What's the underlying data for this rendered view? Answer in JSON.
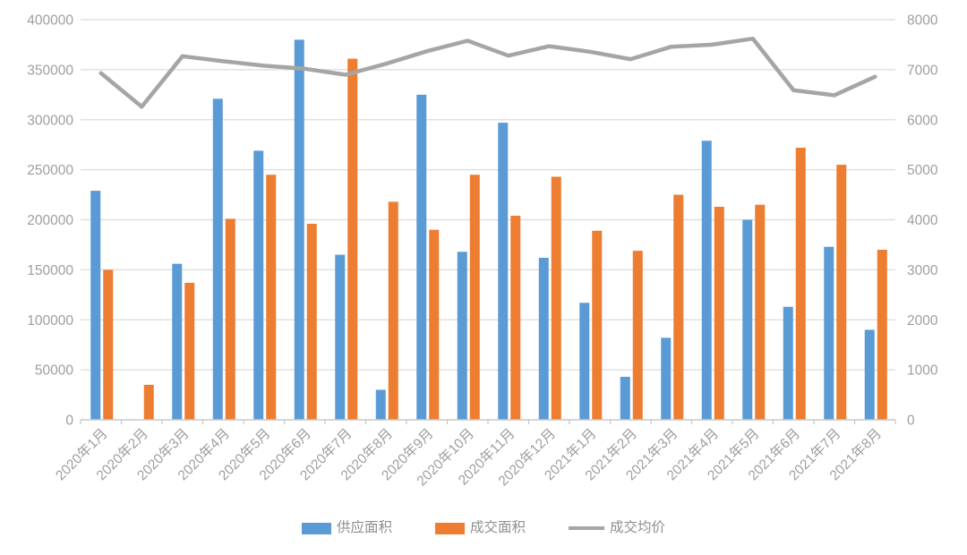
{
  "chart_data": {
    "type": "bar",
    "subtype": "combo-bar-line-dual-axis",
    "title": "",
    "categories": [
      "2020年1月",
      "2020年2月",
      "2020年3月",
      "2020年4月",
      "2020年5月",
      "2020年6月",
      "2020年7月",
      "2020年8月",
      "2020年9月",
      "2020年10月",
      "2020年11月",
      "2020年12月",
      "2021年1月",
      "2021年2月",
      "2021年3月",
      "2021年4月",
      "2021年5月",
      "2021年6月",
      "2021年7月",
      "2021年8月"
    ],
    "series": [
      {
        "name": "供应面积",
        "chart_type": "bar",
        "axis": "left",
        "color": "#5B9BD5",
        "values": [
          229000,
          0,
          156000,
          321000,
          269000,
          380000,
          165000,
          30000,
          325000,
          168000,
          297000,
          162000,
          117000,
          43000,
          82000,
          279000,
          200000,
          113000,
          173000,
          90000
        ]
      },
      {
        "name": "成交面积",
        "chart_type": "bar",
        "axis": "left",
        "color": "#ED7D31",
        "values": [
          150000,
          35000,
          137000,
          201000,
          245000,
          196000,
          361000,
          218000,
          190000,
          245000,
          204000,
          243000,
          189000,
          169000,
          225000,
          213000,
          215000,
          272000,
          255000,
          170000
        ]
      },
      {
        "name": "成交均价",
        "chart_type": "line",
        "axis": "right",
        "color": "#A5A5A5",
        "values": [
          6930,
          6260,
          7270,
          7170,
          7080,
          7020,
          6900,
          7120,
          7370,
          7580,
          7280,
          7470,
          7360,
          7210,
          7460,
          7500,
          7620,
          6590,
          6490,
          6860
        ]
      }
    ],
    "left_axis": {
      "min": 0,
      "max": 400000,
      "step": 50000,
      "ticks": [
        "0",
        "50000",
        "100000",
        "150000",
        "200000",
        "250000",
        "300000",
        "350000",
        "400000"
      ]
    },
    "right_axis": {
      "min": 0,
      "max": 8000,
      "step": 1000,
      "ticks": [
        "0",
        "1000",
        "2000",
        "3000",
        "4000",
        "5000",
        "6000",
        "7000",
        "8000"
      ]
    },
    "grid": true,
    "legend_position": "bottom",
    "x_label_rotation_deg": -45
  },
  "colors": {
    "grid_line": "#dcdcdc",
    "axis_line": "#c9c9c9",
    "tick_label": "#9e9e9e",
    "background": "#ffffff"
  }
}
